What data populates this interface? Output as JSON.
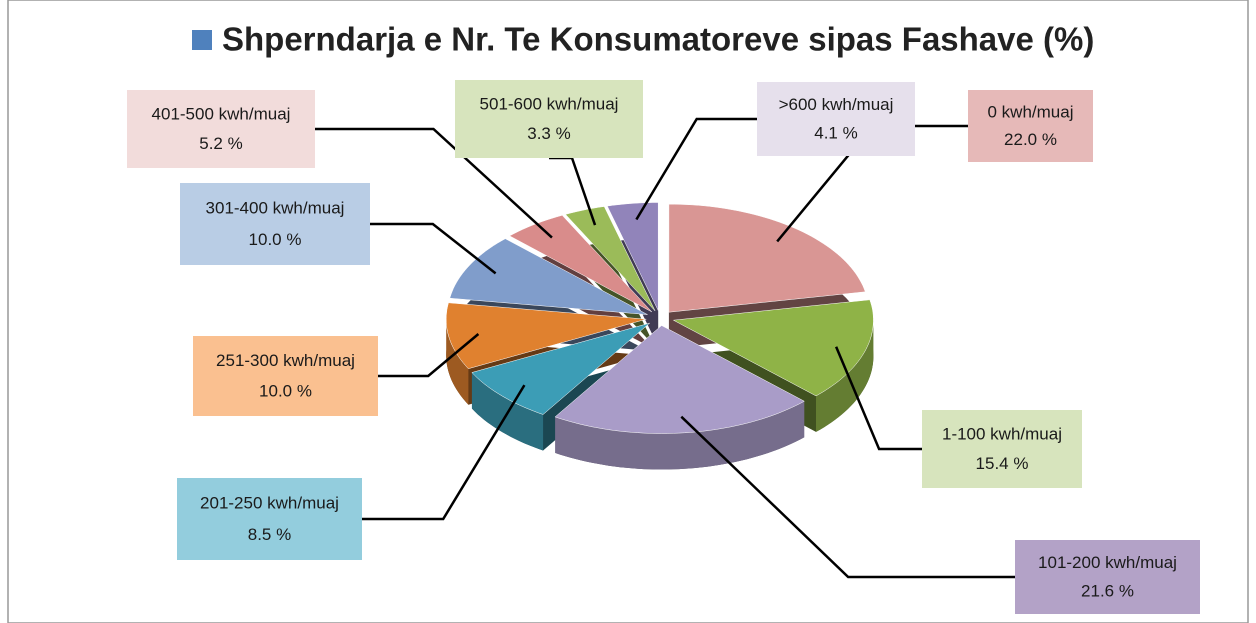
{
  "chart_data": {
    "type": "pie",
    "title": "Shperndarja e Nr. Te Konsumatoreve sipas Fashave (%)",
    "categories": [
      "0 kwh/muaj",
      "1-100 kwh/muaj",
      "101-200 kwh/muaj",
      "201-250 kwh/muaj",
      "251-300 kwh/muaj",
      "301-400 kwh/muaj",
      "401-500 kwh/muaj",
      "501-600 kwh/muaj",
      ">600 kwh/muaj"
    ],
    "values": [
      22.0,
      15.4,
      21.6,
      8.5,
      10.0,
      10.0,
      5.2,
      3.3,
      4.1
    ],
    "value_labels": [
      "22.0 %",
      "15.4 %",
      "21.6 %",
      "8.5 %",
      "10.0 %",
      "10.0 %",
      "5.2 %",
      "3.3 %",
      "4.1 %"
    ],
    "colors": [
      "#d99694",
      "#8fb347",
      "#a99cc8",
      "#3c9db6",
      "#e0812f",
      "#809dcb",
      "#d98c8b",
      "#9bbb59",
      "#9184ba"
    ],
    "label_colors": [
      "#e6b9b8",
      "#d7e4bd",
      "#b3a2c7",
      "#93cddd",
      "#fac090",
      "#b9cde5",
      "#f2dcdb",
      "#d7e4bd",
      "#e6e0ec"
    ],
    "legend_color": "#4f81bd"
  }
}
